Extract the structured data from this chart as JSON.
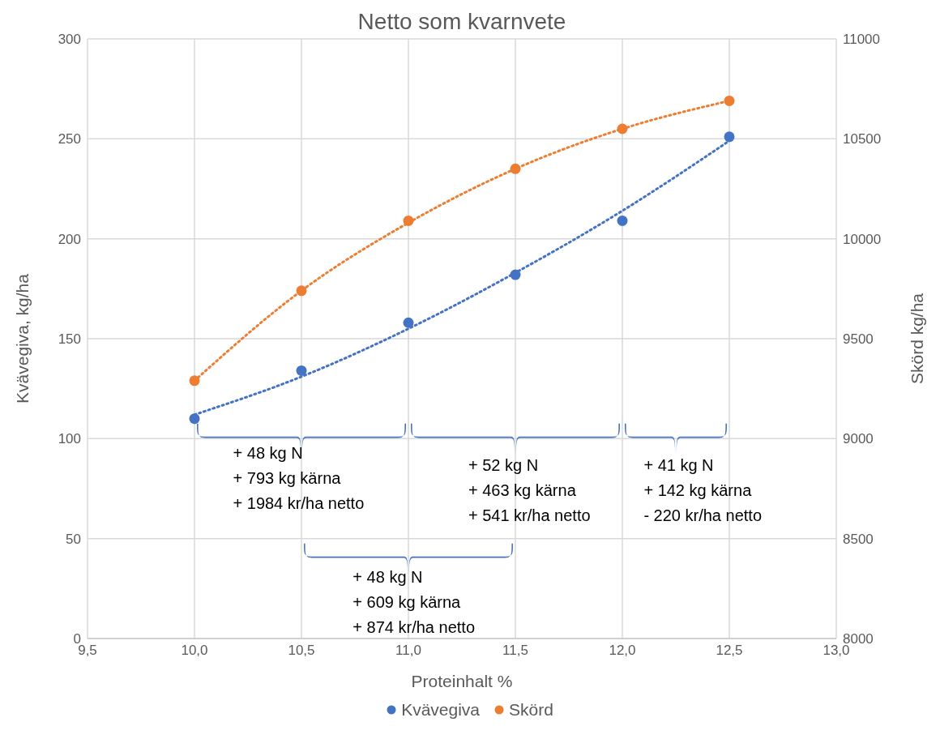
{
  "chart_data": {
    "type": "scatter",
    "title": "Netto som kvarnvete",
    "xlabel": "Proteinhalt %",
    "ylabel": "Kvävegiva, kg/ha",
    "y2label": "Skörd kg/ha",
    "x": [
      10.0,
      10.5,
      11.0,
      11.5,
      12.0,
      12.5
    ],
    "series": [
      {
        "name": "Kvävegiva",
        "color": "#4472c4",
        "values": [
          110,
          134,
          158,
          182,
          209,
          251
        ]
      },
      {
        "name": "Skörd",
        "color": "#ed7d31",
        "axis": "y2",
        "values": [
          9290,
          9740,
          10090,
          10350,
          10550,
          10690
        ]
      },
      {
        "type": "line",
        "color": "#4472c4",
        "line_style": "dotted",
        "marker": "none",
        "x": [
          10.0,
          10.5,
          11.0,
          11.5,
          12.0,
          12.5
        ],
        "values": [
          112,
          131,
          155,
          183,
          214,
          249
        ]
      },
      {
        "type": "line",
        "color": "#ed7d31",
        "axis": "y2",
        "line_style": "dotted",
        "marker": "none",
        "x": [
          10.0,
          10.5,
          11.0,
          11.5,
          12.0,
          12.5
        ],
        "values": [
          9290,
          9740,
          10080,
          10350,
          10550,
          10690
        ]
      }
    ],
    "xlim": [
      9.5,
      13.0
    ],
    "xticks": [
      {
        "value": 9.5,
        "label": "9,5"
      },
      {
        "value": 10.0,
        "label": "10,0"
      },
      {
        "value": 10.5,
        "label": "10,5"
      },
      {
        "value": 11.0,
        "label": "11,0"
      },
      {
        "value": 11.5,
        "label": "11,5"
      },
      {
        "value": 12.0,
        "label": "12,0"
      },
      {
        "value": 12.5,
        "label": "12,5"
      },
      {
        "value": 13.0,
        "label": "13,0"
      }
    ],
    "ylim": [
      0,
      300
    ],
    "yticks": [
      0,
      50,
      100,
      150,
      200,
      250,
      300
    ],
    "y2lim": [
      8000,
      11000
    ],
    "y2ticks": [
      8000,
      8500,
      9000,
      9500,
      10000,
      10500,
      11000
    ],
    "grid": true,
    "legend": "bottom",
    "marker": "circle",
    "annotations": [
      "+ 48 kg N\n+ 793 kg kärna\n+ 1984 kr/ha netto",
      "+ 52 kg N\n+ 463 kg kärna\n+ 541 kr/ha netto",
      "+ 41 kg N\n+ 142 kg kärna\n- 220 kr/ha netto",
      "+ 48 kg N\n+ 609 kg kärna\n+ 874 kr/ha netto"
    ]
  }
}
